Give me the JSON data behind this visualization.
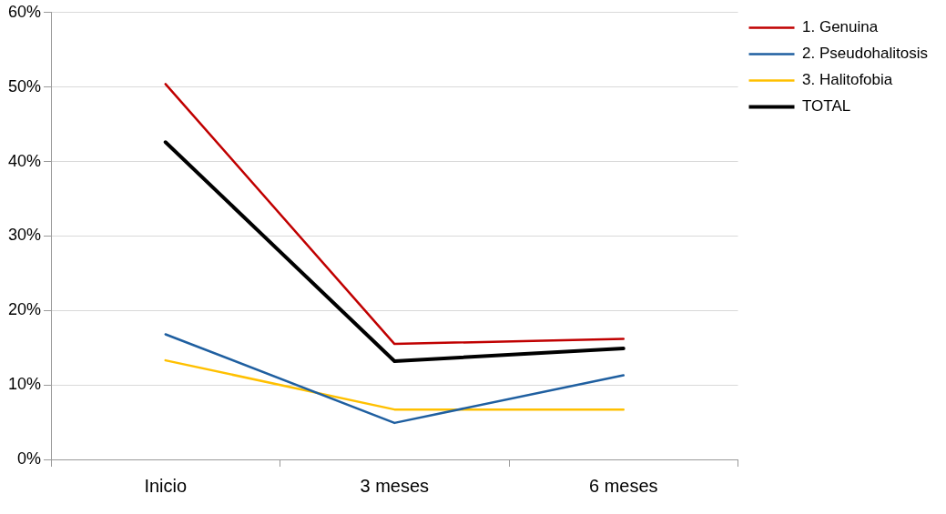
{
  "chart_data": {
    "type": "line",
    "categories": [
      "Inicio",
      "3 meses",
      "6 meses"
    ],
    "series": [
      {
        "name": "1. Genuina",
        "color": "#c00000",
        "values": [
          50.4,
          15.5,
          16.2
        ]
      },
      {
        "name": "2. Pseudohalitosis",
        "color": "#1f5fa0",
        "values": [
          16.8,
          4.9,
          11.3
        ]
      },
      {
        "name": "3. Halitofobia",
        "color": "#ffc000",
        "values": [
          13.3,
          6.7,
          6.7
        ]
      },
      {
        "name": "TOTAL",
        "color": "#000000",
        "values": [
          42.6,
          13.2,
          14.9
        ]
      }
    ],
    "ylim": [
      0,
      60
    ],
    "yticks": [
      {
        "value": 0,
        "label": "0%"
      },
      {
        "value": 10,
        "label": "10%"
      },
      {
        "value": 20,
        "label": "20%"
      },
      {
        "value": 30,
        "label": "30%"
      },
      {
        "value": 40,
        "label": "40%"
      },
      {
        "value": 50,
        "label": "50%"
      },
      {
        "value": 60,
        "label": "60%"
      }
    ],
    "grid": "y",
    "legend": "top right",
    "marker": "none",
    "line_style": "solid"
  }
}
